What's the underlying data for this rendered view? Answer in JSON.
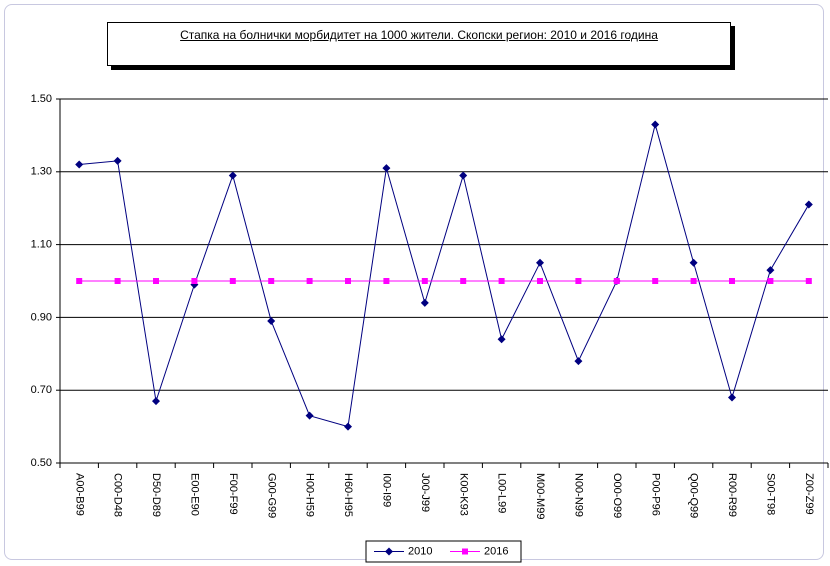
{
  "chart_data": {
    "type": "line",
    "title": "Стапка на болнички морбидитет на 1000 жители. Скопски регион: 2010 и 2016 година",
    "categories": [
      "A00-B99",
      "C00-D48",
      "D50-D89",
      "E00-E90",
      "F00-F99",
      "G00-G99",
      "H00-H59",
      "H60-H95",
      "I00-I99",
      "J00-J99",
      "K00-K93",
      "L00-L99",
      "M00-M99",
      "N00-N99",
      "O00-O99",
      "P00-P96",
      "Q00-Q99",
      "R00-R99",
      "S00-T98",
      "Z00-Z99"
    ],
    "series": [
      {
        "name": "2010",
        "color": "#000080",
        "marker": "diamond",
        "values": [
          1.32,
          1.33,
          0.67,
          0.99,
          1.29,
          0.89,
          0.63,
          0.6,
          1.31,
          0.94,
          1.29,
          0.84,
          1.05,
          0.78,
          1.0,
          1.43,
          1.05,
          0.68,
          1.03,
          1.21
        ]
      },
      {
        "name": "2016",
        "color": "#ff00ff",
        "marker": "square",
        "values": [
          1,
          1,
          1,
          1,
          1,
          1,
          1,
          1,
          1,
          1,
          1,
          1,
          1,
          1,
          1,
          1,
          1,
          1,
          1,
          1
        ]
      }
    ],
    "ylim": [
      0.5,
      1.5
    ],
    "yticks": [
      {
        "value": 0.5,
        "label": "0.50"
      },
      {
        "value": 0.7,
        "label": "0.70"
      },
      {
        "value": 0.9,
        "label": "0.90"
      },
      {
        "value": 1.1,
        "label": "1.10"
      },
      {
        "value": 1.3,
        "label": "1.30"
      },
      {
        "value": 1.5,
        "label": "1.50"
      }
    ],
    "grid": true,
    "legend": "bottom"
  }
}
